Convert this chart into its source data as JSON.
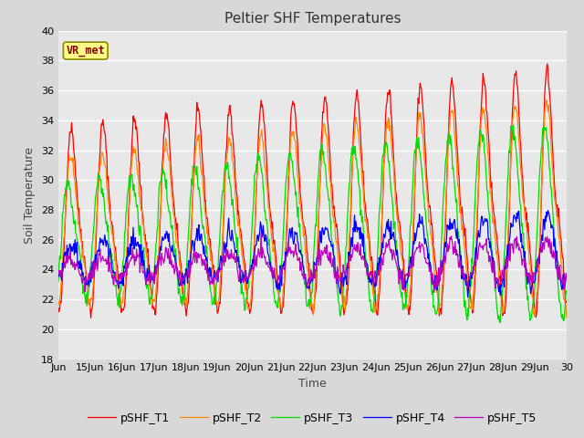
{
  "title": "Peltier SHF Temperatures",
  "xlabel": "Time",
  "ylabel": "Soil Temperature",
  "ylim": [
    18,
    40
  ],
  "xlim_days": [
    14,
    30
  ],
  "xtick_days": [
    14,
    15,
    16,
    17,
    18,
    19,
    20,
    21,
    22,
    23,
    24,
    25,
    26,
    27,
    28,
    29,
    30
  ],
  "xtick_labels": [
    "Jun",
    "15Jun",
    "16Jun",
    "17Jun",
    "18Jun",
    "19Jun",
    "20Jun",
    "21Jun",
    "22Jun",
    "23Jun",
    "24Jun",
    "25Jun",
    "26Jun",
    "27Jun",
    "28Jun",
    "29Jun",
    "30"
  ],
  "background_color": "#d8d8d8",
  "plot_background": "#e8e8e8",
  "grid_color": "#ffffff",
  "colors": {
    "T1": "#ff0000",
    "T2": "#ff8800",
    "T3": "#00dd00",
    "T4": "#0000ff",
    "T5": "#bb00bb"
  },
  "legend_labels": [
    "pSHF_T1",
    "pSHF_T2",
    "pSHF_T3",
    "pSHF_T4",
    "pSHF_T5"
  ],
  "annotation_text": "VR_met",
  "annotation_color": "#8b0000",
  "annotation_bg": "#ffff88",
  "title_fontsize": 11,
  "label_fontsize": 9,
  "tick_fontsize": 8,
  "legend_fontsize": 9
}
